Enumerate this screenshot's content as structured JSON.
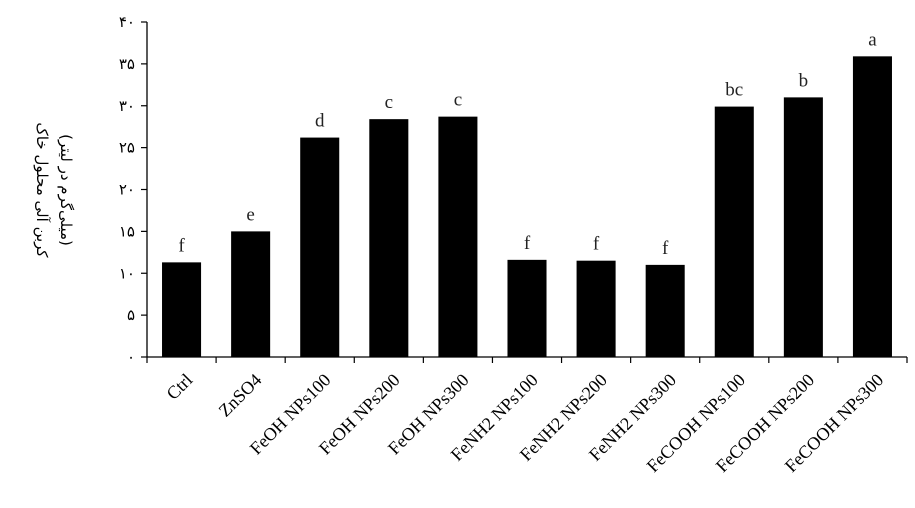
{
  "chart_data": {
    "type": "bar",
    "categories": [
      "Ctrl",
      "ZnSO4",
      "FeOH NPs100",
      "FeOH NPs200",
      "FeOH NPs300",
      "FeNH2 NPs100",
      "FeNH2 NPs200",
      "FeNH2 NPs300",
      "FeCOOH NPs100",
      "FeCOOH NPs200",
      "FeCOOH NPs300"
    ],
    "values": [
      11.3,
      15.0,
      26.2,
      28.4,
      28.7,
      11.6,
      11.5,
      11.0,
      29.9,
      31.0,
      35.9
    ],
    "significance_letters": [
      "f",
      "e",
      "d",
      "c",
      "c",
      "f",
      "f",
      "f",
      "bc",
      "b",
      "a"
    ],
    "ylim": [
      0,
      40
    ],
    "yticks": [
      0,
      5,
      10,
      15,
      20,
      25,
      30,
      35,
      40
    ],
    "ytick_labels": [
      "۰",
      "۵",
      "۱۰",
      "۱۵",
      "۲۰",
      "۲۵",
      "۳۰",
      "۳۵",
      "۴۰"
    ],
    "ylabel_line1": "کربن آلی محلول خاک",
    "ylabel_line2": "(میلی‌گرم در لیتر)",
    "bar_color": "#000000",
    "grid": false
  }
}
